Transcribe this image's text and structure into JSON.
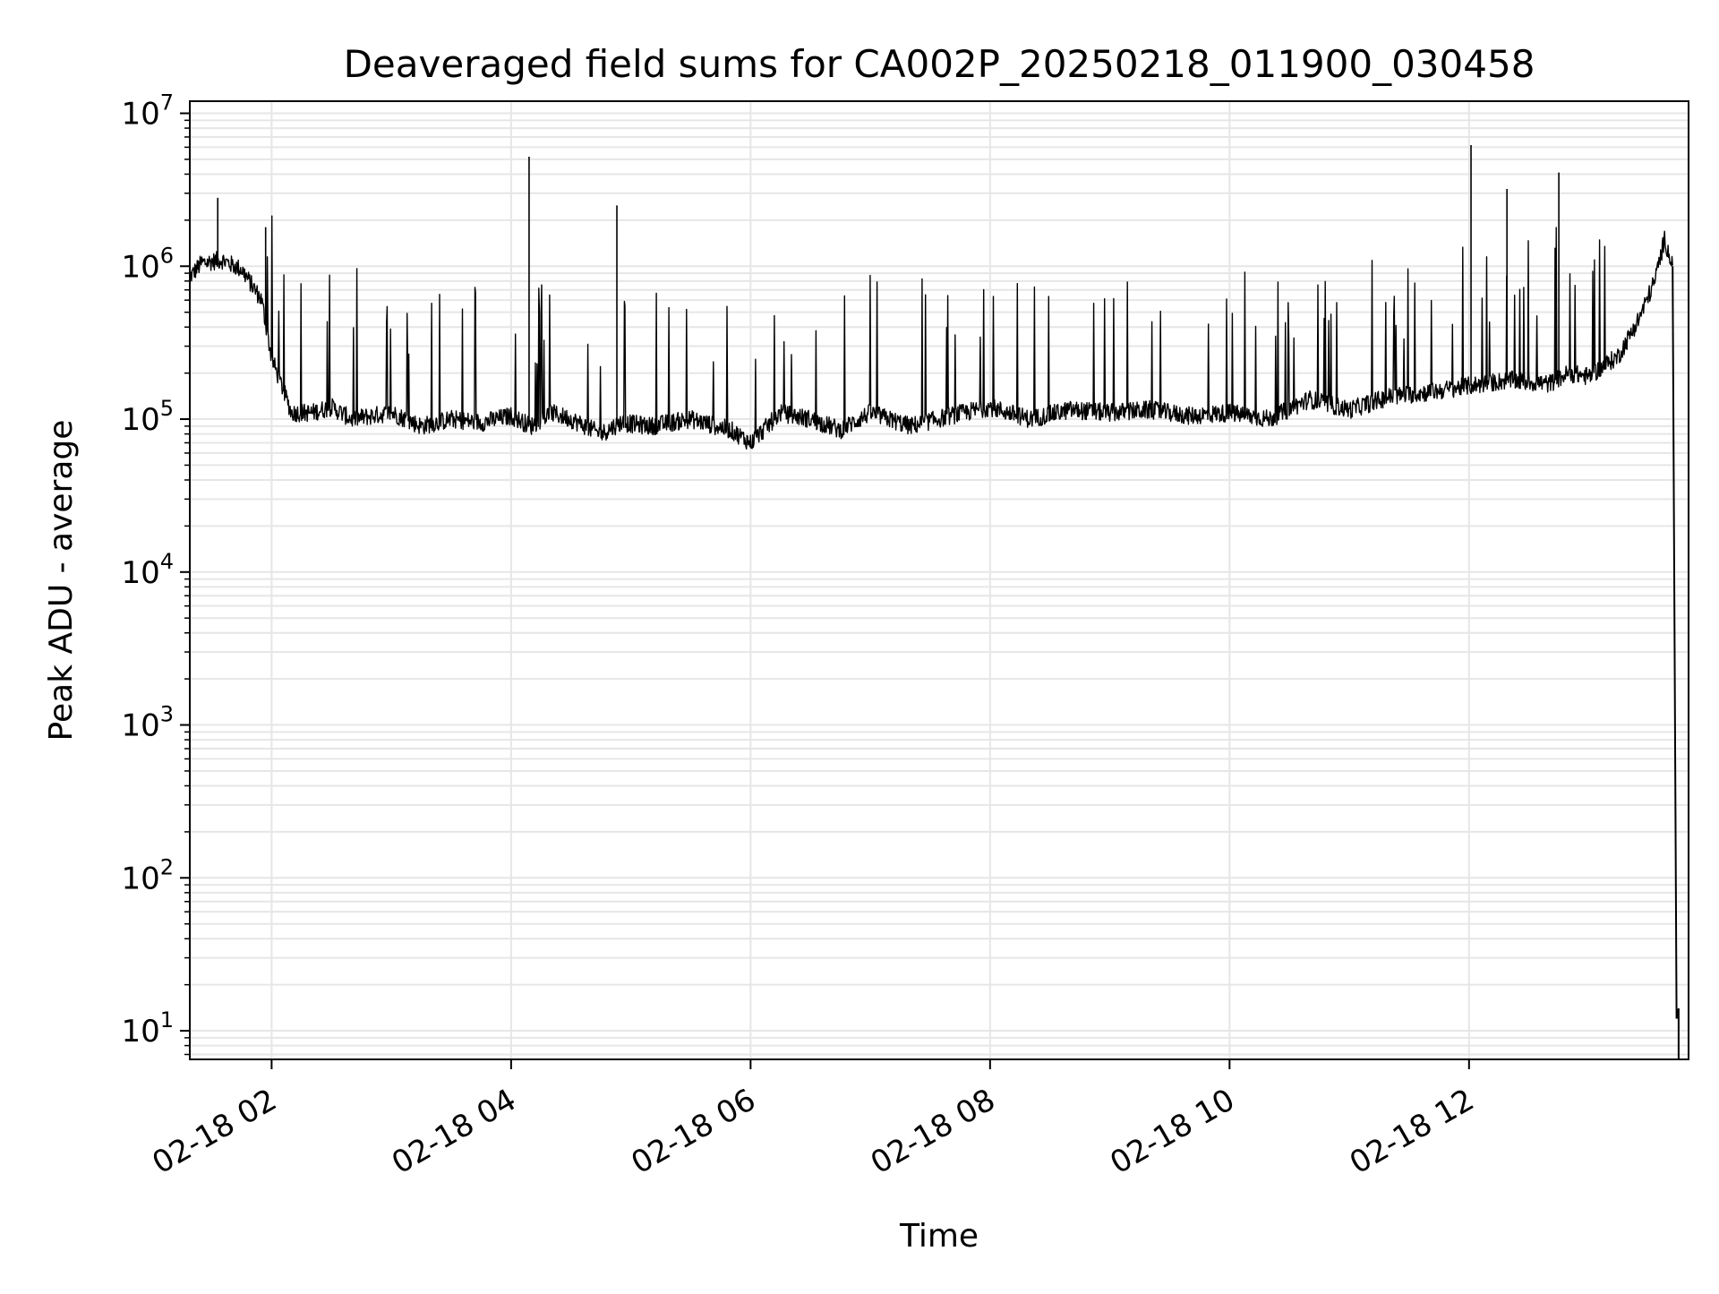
{
  "chart_data": {
    "type": "line",
    "title": "Deaveraged field sums for CA002P_20250218_011900_030458",
    "xlabel": "Time",
    "ylabel": "Peak ADU - average",
    "x_scale": "time",
    "x_range": [
      "02-18 01:19",
      "02-18 13:50"
    ],
    "xlim": [
      "02-18 01:19",
      "02-18 13:50"
    ],
    "x_ticks": [
      "02-18 02",
      "02-18 04",
      "02-18 06",
      "02-18 08",
      "02-18 10",
      "02-18 12"
    ],
    "x_tick_hours": [
      2,
      4,
      6,
      8,
      10,
      12
    ],
    "y_scale": "log",
    "ylim": [
      6.5,
      12000000
    ],
    "y_ticks": [
      {
        "value": 10,
        "base": "10",
        "exp": "1"
      },
      {
        "value": 100,
        "base": "10",
        "exp": "2"
      },
      {
        "value": 1000,
        "base": "10",
        "exp": "3"
      },
      {
        "value": 10000,
        "base": "10",
        "exp": "4"
      },
      {
        "value": 100000,
        "base": "10",
        "exp": "5"
      },
      {
        "value": 1000000,
        "base": "10",
        "exp": "6"
      },
      {
        "value": 10000000,
        "base": "10",
        "exp": "7"
      }
    ],
    "grid": true,
    "line_color": "#000000",
    "grid_color": "#e6e6e6",
    "series": [
      {
        "x": [
          "02-18 01:19",
          "02-18 01:25",
          "02-18 01:35",
          "02-18 01:45",
          "02-18 01:55",
          "02-18 02:00",
          "02-18 02:10",
          "02-18 02:20",
          "02-18 02:30",
          "02-18 02:40",
          "02-18 03:00",
          "02-18 03:15",
          "02-18 03:30",
          "02-18 03:45",
          "02-18 04:00",
          "02-18 04:10",
          "02-18 04:20",
          "02-18 04:30",
          "02-18 04:45",
          "02-18 04:55",
          "02-18 05:10",
          "02-18 05:30",
          "02-18 05:50",
          "02-18 06:00",
          "02-18 06:15",
          "02-18 06:30",
          "02-18 06:45",
          "02-18 07:00",
          "02-18 07:20",
          "02-18 07:40",
          "02-18 08:00",
          "02-18 08:20",
          "02-18 08:40",
          "02-18 09:00",
          "02-18 09:20",
          "02-18 09:40",
          "02-18 10:00",
          "02-18 10:20",
          "02-18 10:40",
          "02-18 11:00",
          "02-18 11:20",
          "02-18 11:40",
          "02-18 12:00",
          "02-18 12:20",
          "02-18 12:40",
          "02-18 12:50",
          "02-18 13:00",
          "02-18 13:15",
          "02-18 13:25",
          "02-18 13:33",
          "02-18 13:38",
          "02-18 13:42"
        ],
        "values": [
          850000,
          1050000,
          1100000,
          950000,
          600000,
          250000,
          110000,
          110000,
          120000,
          100000,
          110000,
          90000,
          100000,
          95000,
          105000,
          90000,
          110000,
          100000,
          80000,
          95000,
          90000,
          100000,
          85000,
          70000,
          110000,
          100000,
          85000,
          110000,
          90000,
          105000,
          120000,
          100000,
          115000,
          110000,
          115000,
          105000,
          110000,
          100000,
          135000,
          115000,
          140000,
          150000,
          165000,
          180000,
          170000,
          200000,
          190000,
          260000,
          450000,
          800000,
          1500000,
          1000000
        ]
      }
    ],
    "spikes": [
      {
        "x": "02-18 04:09",
        "value": 5200000
      },
      {
        "x": "02-18 04:53",
        "value": 2500000
      },
      {
        "x": "02-18 01:33",
        "value": 2800000
      },
      {
        "x": "02-18 01:57",
        "value": 1800000
      },
      {
        "x": "02-18 12:01",
        "value": 6200000
      },
      {
        "x": "02-18 12:19",
        "value": 3200000
      },
      {
        "x": "02-18 12:45",
        "value": 4100000
      }
    ],
    "final_drop": [
      {
        "x": "02-18 13:42",
        "value": 1000000
      },
      {
        "x": "02-18 13:44",
        "value": 12
      },
      {
        "x": "02-18 13:45",
        "value": 14
      }
    ]
  }
}
